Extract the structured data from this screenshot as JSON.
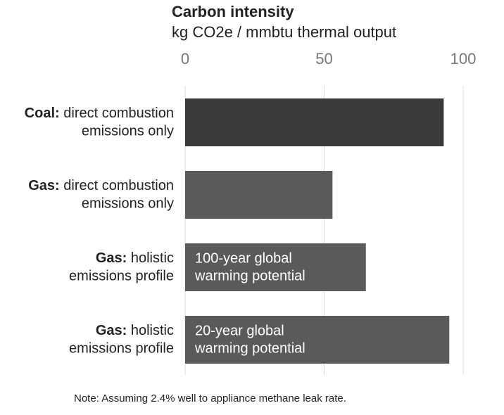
{
  "chart_data": {
    "type": "bar",
    "orientation": "horizontal",
    "title": "Carbon intensity",
    "subtitle": "kg CO2e / mmbtu thermal output",
    "categories": [
      {
        "label": "Coal:",
        "detail": [
          "direct combustion",
          "emissions only"
        ]
      },
      {
        "label": "Gas:",
        "detail": [
          "direct combustion",
          "emissions only"
        ]
      },
      {
        "label": "Gas:",
        "detail": [
          "holistic",
          "emissions profile"
        ]
      },
      {
        "label": "Gas:",
        "detail": [
          "holistic",
          "emissions profile"
        ]
      }
    ],
    "values": [
      93,
      53,
      65,
      95
    ],
    "colors": [
      "#3a3a3a",
      "#5a5a5a",
      "#5a5a5a",
      "#5a5a5a"
    ],
    "bar_annotations": [
      null,
      null,
      [
        "100-year global",
        "warming potential"
      ],
      [
        "20-year global",
        "warming potential"
      ]
    ],
    "xlim": [
      0,
      100
    ],
    "xticks": [
      0,
      50,
      100
    ],
    "grid": true,
    "note": "Note: Assuming 2.4% well to appliance methane leak rate."
  }
}
